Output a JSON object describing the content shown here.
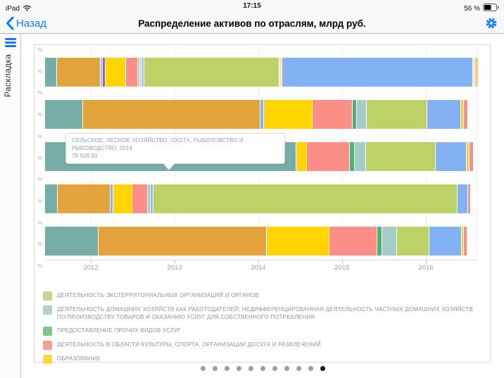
{
  "status_bar": {
    "device": "iPad",
    "time": "17:15",
    "battery": "56 %"
  },
  "nav_bar": {
    "back_label": "Назад",
    "title": "Распределение активов по отраслям, млрд руб."
  },
  "sidebar": {
    "label": "Раскладка"
  },
  "tooltip": {
    "line1": "СЕЛЬСКОЕ, ЛЕСНОЕ ХОЗЯЙСТВО, ОХОТА, РЫБОЛОВСТВО И РЫБОВОДСТВО, 2014",
    "line2": "78 508,00"
  },
  "chart_data": {
    "type": "bar",
    "orientation": "horizontal-stacked",
    "x_ticks": [
      "2012",
      "2013",
      "2014",
      "2015",
      "2016"
    ],
    "y_tick_label": "%",
    "y_tick_count": 11,
    "grid": true,
    "palette": {
      "teal": "#76ADA7",
      "orange": "#E2A23C",
      "yellow": "#FFD401",
      "pink": "#FB8F88",
      "green": "#53B273",
      "pale_teal": "#A4CDC7",
      "pale_green": "#BFDDB2",
      "lime": "#BCD266",
      "blue": "#83B2F4",
      "purple": "#8A62B5",
      "periwinkle": "#A3B8E8",
      "pale_yellow": "#FFE2A3",
      "peach": "#F8C49B"
    },
    "known_values": [
      {
        "series": "СЕЛЬСКОЕ, ЛЕСНОЕ ХОЗЯЙСТВО, ОХОТА, РЫБОЛОВСТВО И РЫБОВОДСТВО",
        "year": "2014",
        "value": "78 508,00"
      }
    ],
    "rows": [
      {
        "year": "2012",
        "segments": [
          [
            "teal",
            16
          ],
          [
            "orange",
            61
          ],
          [
            "periwinkle",
            2
          ],
          [
            "purple",
            3
          ],
          [
            "yellow",
            28
          ],
          [
            "pink",
            16
          ],
          [
            "pale_teal",
            2
          ],
          [
            "pale_green",
            2
          ],
          [
            "periwinkle",
            2
          ],
          [
            "lime",
            191
          ],
          [
            "pale_yellow",
            3
          ],
          [
            "blue",
            270
          ],
          [
            "pale_yellow",
            2
          ],
          [
            "peach",
            4
          ]
        ]
      },
      {
        "year": "2013",
        "segments": [
          [
            "teal",
            53
          ],
          [
            "orange",
            251
          ],
          [
            "blue",
            4
          ],
          [
            "yellow",
            68
          ],
          [
            "pink",
            56
          ],
          [
            "green",
            5
          ],
          [
            "pale_teal",
            13
          ],
          [
            "lime",
            85
          ],
          [
            "blue",
            47
          ],
          [
            "yellow",
            3
          ],
          [
            "pink",
            5
          ]
        ]
      },
      {
        "year": "2014",
        "segments": [
          [
            "teal",
            356
          ],
          [
            "yellow",
            14
          ],
          [
            "pink",
            60
          ],
          [
            "green",
            6
          ],
          [
            "pale_teal",
            15
          ],
          [
            "lime",
            98
          ],
          [
            "blue",
            43
          ],
          [
            "yellow",
            3
          ],
          [
            "pink",
            5
          ]
        ]
      },
      {
        "year": "2015",
        "segments": [
          [
            "teal",
            17
          ],
          [
            "orange",
            74
          ],
          [
            "blue",
            3
          ],
          [
            "yellow",
            26
          ],
          [
            "pink",
            21
          ],
          [
            "pale_teal",
            3
          ],
          [
            "periwinkle",
            3
          ],
          [
            "lime",
            431
          ],
          [
            "blue",
            14
          ],
          [
            "pink",
            3
          ]
        ]
      },
      {
        "year": "2016",
        "segments": [
          [
            "teal",
            75
          ],
          [
            "orange",
            238
          ],
          [
            "yellow",
            88
          ],
          [
            "pink",
            67
          ],
          [
            "green",
            6
          ],
          [
            "pale_teal",
            20
          ],
          [
            "lime",
            45
          ],
          [
            "blue",
            45
          ],
          [
            "yellow",
            2
          ],
          [
            "pink",
            4
          ]
        ]
      }
    ],
    "legend": [
      {
        "color": "#CBD48C",
        "color_key": "lime",
        "label": "ДЕЯТЕЛЬНОСТЬ ЭКСТЕРРИТОРИАЛЬНЫХ ОРГАНИЗАЦИЙ И ОРГАНОВ"
      },
      {
        "color": "#B0D2CB",
        "color_key": "pale_teal",
        "label": "ДЕЯТЕЛЬНОСТЬ ДОМАШНИХ ХОЗЯЙСТВ КАК РАБОТОДАТЕЛЕЙ; НЕДИФФЕРЕНЦИРОВАННАЯ ДЕЯТЕЛЬНОСТЬ ЧАСТНЫХ ДОМАШНИХ ХОЗЯЙСТВ ПО ПРОИЗВОДСТВУ ТОВАРОВ И ОКАЗАНИЮ УСЛУГ ДЛЯ СОБСТВЕННОГО ПОТРЕБЛЕНИЯ"
      },
      {
        "color": "#7FC78F",
        "color_key": "green",
        "label": "ПРЕДОСТАВЛЕНИЕ ПРОЧИХ ВИДОВ УСЛУГ"
      },
      {
        "color": "#F89C95",
        "color_key": "pink",
        "label": "ДЕЯТЕЛЬНОСТЬ В ОБЛАСТИ КУЛЬТУРЫ, СПОРТА, ОРГАНИЗАЦИИ ДОСУГА И РАЗВЛЕЧЕНИЙ"
      },
      {
        "color": "#FFD83E",
        "color_key": "yellow",
        "label": "ОБРАЗОВАНИЕ"
      }
    ]
  },
  "pagination": {
    "total": 11,
    "active_index": 10
  }
}
